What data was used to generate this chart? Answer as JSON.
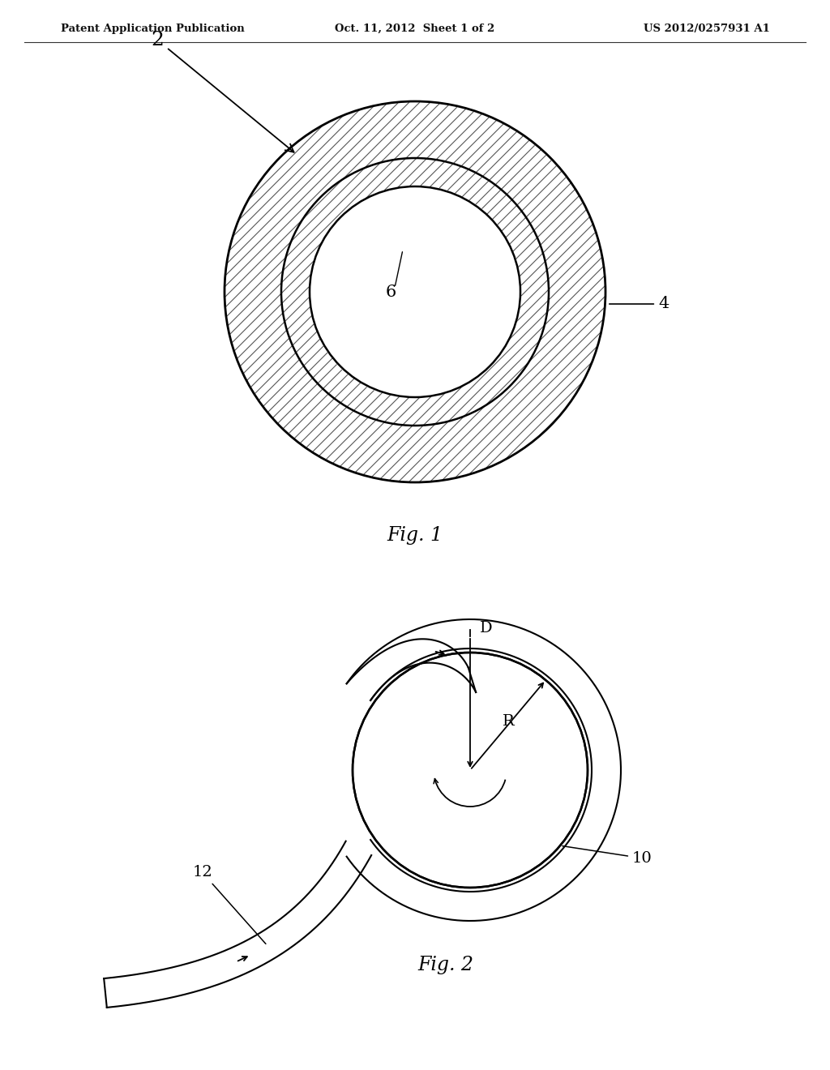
{
  "header_left": "Patent Application Publication",
  "header_center": "Oct. 11, 2012  Sheet 1 of 2",
  "header_right": "US 2012/0257931 A1",
  "fig1_label": "Fig. 1",
  "fig2_label": "Fig. 2",
  "label_2": "2",
  "label_4": "4",
  "label_6": "6",
  "label_10": "10",
  "label_12": "12",
  "label_D": "D",
  "label_R": "R",
  "background_color": "#ffffff"
}
